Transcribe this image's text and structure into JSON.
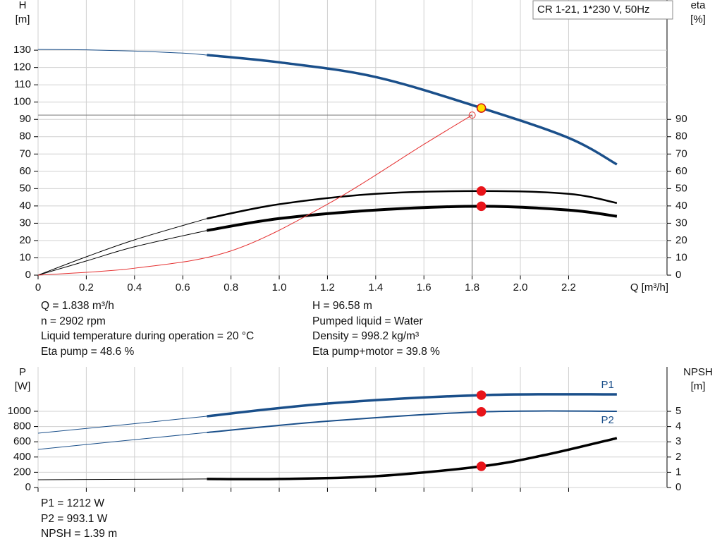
{
  "chart_data": [
    {
      "type": "line",
      "title": "CR 1-21, 1*230 V, 50Hz",
      "x_label": "Q [m³/h]",
      "y_label": [
        "H",
        "[m]"
      ],
      "y2_label": [
        "eta",
        "[%]"
      ],
      "xlim": [
        0,
        2.608
      ],
      "xticks": [
        0,
        0.2,
        0.4,
        0.6,
        0.8,
        {
          "value": 1,
          "label": "1.0"
        },
        1.2,
        1.4,
        1.6,
        1.8,
        {
          "value": 2,
          "label": "2.0"
        },
        2.2
      ],
      "ylim": [
        0,
        159
      ],
      "yticks": [
        0,
        10,
        20,
        30,
        40,
        50,
        60,
        70,
        80,
        90,
        100,
        110,
        120,
        130
      ],
      "y2lim": [
        0,
        159
      ],
      "y2ticks": [
        0,
        10,
        20,
        30,
        40,
        50,
        60,
        70,
        80,
        90
      ],
      "grid": true,
      "series": [
        {
          "color": "#1a4f8a",
          "width": 1,
          "x": [
            0,
            0.2,
            0.4,
            0.6,
            0.7
          ],
          "values": [
            130.4,
            130.2,
            129.5,
            128.3,
            127.2
          ]
        },
        {
          "color": "#1a4f8a",
          "width": 3.5,
          "x": [
            0.7,
            1.0,
            1.4,
            1.838,
            2.2,
            2.4
          ],
          "values": [
            127.2,
            123,
            114.5,
            96.58,
            79.3,
            64
          ]
        },
        {
          "color": "#000000",
          "width": 1,
          "axis": "y2",
          "x": [
            0,
            0.2,
            0.4,
            0.7
          ],
          "values": [
            0,
            10.6,
            20.4,
            32.7
          ]
        },
        {
          "color": "#000000",
          "width": 2.5,
          "axis": "y2",
          "x": [
            0.7,
            1.0,
            1.4,
            1.838,
            2.2,
            2.4
          ],
          "values": [
            32.7,
            41,
            47,
            48.6,
            47,
            41.7
          ]
        },
        {
          "color": "#000000",
          "width": 1,
          "axis": "y2",
          "x": [
            0,
            0.2,
            0.4,
            0.7
          ],
          "values": [
            0,
            8.2,
            16.4,
            25.8
          ]
        },
        {
          "color": "#000000",
          "width": 4,
          "axis": "y2",
          "x": [
            0.7,
            1.0,
            1.4,
            1.838,
            2.2,
            2.4
          ],
          "values": [
            25.8,
            32.7,
            37.6,
            39.8,
            37.6,
            34
          ]
        },
        {
          "color": "#e53030",
          "width": 1,
          "x": [
            0,
            0.4,
            0.8,
            1.2,
            1.6,
            1.8
          ],
          "values": [
            0,
            4,
            14,
            41,
            75.6,
            92.5
          ]
        }
      ],
      "points": [
        {
          "x": 1.8,
          "y": 92.5,
          "color": "#e53030",
          "style": "ring"
        },
        {
          "x": 1.838,
          "y": 96.58,
          "color": "#ffe000"
        },
        {
          "x": 1.838,
          "y": 48.6,
          "axis": "y2",
          "color": "#e8141a"
        },
        {
          "x": 1.838,
          "y": 39.8,
          "axis": "y2",
          "color": "#e8141a"
        }
      ],
      "notes": [
        [
          "Q = 1.838 m³/h",
          "n = 2902 rpm",
          "Liquid temperature during operation = 20 °C",
          "Eta pump = 48.6 %"
        ],
        [
          "H = 96.58 m",
          "Pumped liquid = Water",
          "Density = 998.2 kg/m³",
          "Eta pump+motor = 39.8 %"
        ]
      ]
    },
    {
      "type": "line",
      "y_label": [
        "P",
        "[W]"
      ],
      "y2_label": [
        "NPSH",
        "[m]"
      ],
      "xlim": [
        0,
        2.608
      ],
      "ylim": [
        0,
        1583
      ],
      "yticks": [
        0,
        200,
        400,
        600,
        800,
        1000
      ],
      "y2lim": [
        0,
        7.92
      ],
      "y2ticks": [
        0,
        1,
        2,
        3,
        4,
        5
      ],
      "grid": true,
      "series": [
        {
          "color": "#1a4f8a",
          "width": 1,
          "x": [
            0,
            0.35,
            0.7
          ],
          "values": [
            713,
            822,
            935
          ]
        },
        {
          "name": "P1",
          "color": "#1a4f8a",
          "width": 3.5,
          "x": [
            0.7,
            1.2,
            1.838,
            2.4
          ],
          "values": [
            935,
            1102,
            1212,
            1222
          ]
        },
        {
          "color": "#1a4f8a",
          "width": 1,
          "x": [
            0,
            0.35,
            0.7
          ],
          "values": [
            500,
            612,
            722
          ]
        },
        {
          "name": "P2",
          "color": "#1a4f8a",
          "width": 2,
          "x": [
            0.7,
            1.2,
            1.838,
            2.4
          ],
          "values": [
            722,
            870,
            993.1,
            1000
          ]
        },
        {
          "color": "#000000",
          "width": 1,
          "axis": "y2",
          "x": [
            0,
            0.7
          ],
          "values": [
            0.51,
            0.56
          ]
        },
        {
          "color": "#000000",
          "width": 3.5,
          "axis": "y2",
          "x": [
            0.7,
            1.0,
            1.4,
            1.838,
            2.1,
            2.4
          ],
          "values": [
            0.56,
            0.56,
            0.74,
            1.39,
            2.13,
            3.24
          ]
        }
      ],
      "points": [
        {
          "x": 1.838,
          "y": 1212,
          "color": "#e8141a"
        },
        {
          "x": 1.838,
          "y": 993.1,
          "color": "#e8141a"
        },
        {
          "x": 1.838,
          "y": 1.39,
          "axis": "y2",
          "color": "#e8141a"
        }
      ],
      "notes": [
        [
          "P1 = 1212 W",
          "P2 = 993.1 W",
          "NPSH = 1.39 m"
        ]
      ]
    }
  ]
}
